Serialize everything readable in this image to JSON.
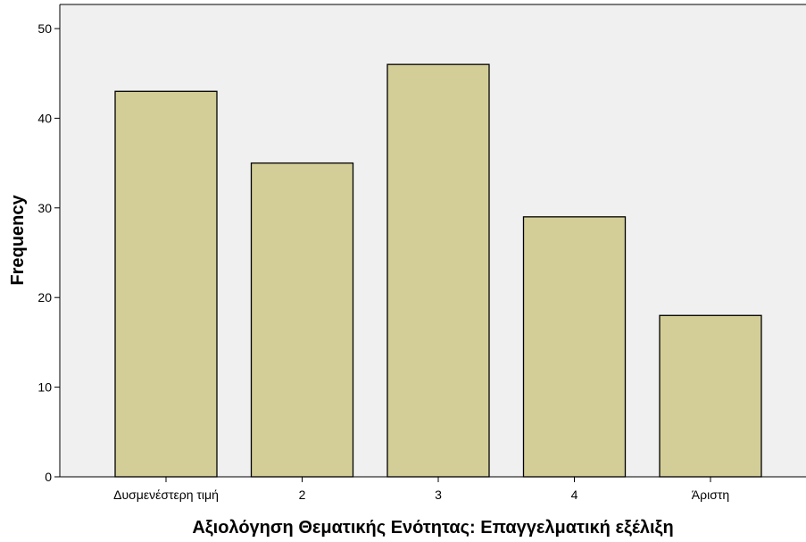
{
  "chart_data": {
    "type": "bar",
    "title": "",
    "xlabel": "Αξιολόγηση Θεματικής Ενότητας: Επαγγελματική εξέλιξη",
    "ylabel": "Frequency",
    "categories": [
      "Δυσμενέστερη τιμή",
      "2",
      "3",
      "4",
      "Άριστη"
    ],
    "values": [
      43,
      35,
      46,
      29,
      18
    ],
    "ylim": [
      0,
      50
    ],
    "yticks": [
      "0",
      "10",
      "20",
      "30",
      "40",
      "50"
    ],
    "grid": false,
    "colors": {
      "plot_background": "#f0f0f0",
      "bar_fill": "#d3ce97",
      "bar_stroke": "#000000"
    }
  }
}
